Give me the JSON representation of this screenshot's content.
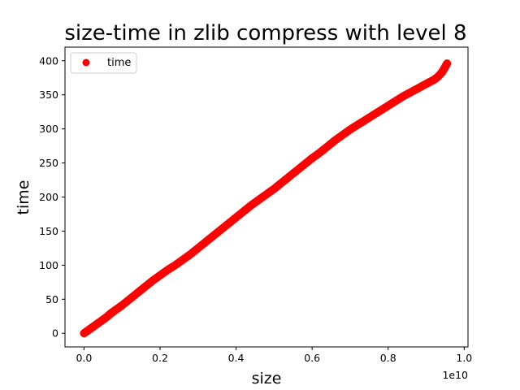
{
  "chart_data": {
    "type": "scatter",
    "title": "size-time in zlib compress with level 8",
    "xlabel": "size",
    "ylabel": "time",
    "x_offset_label": "1e10",
    "x_scale": 10000000000,
    "xlim": [
      -500000000,
      10100000000
    ],
    "ylim": [
      -20,
      420
    ],
    "xticks": [
      0,
      2000000000,
      4000000000,
      6000000000,
      8000000000,
      10000000000
    ],
    "xtick_labels": [
      "0.0",
      "0.2",
      "0.4",
      "0.6",
      "0.8",
      "1.0"
    ],
    "yticks": [
      0,
      50,
      100,
      150,
      200,
      250,
      300,
      350,
      400
    ],
    "ytick_labels": [
      "0",
      "50",
      "100",
      "150",
      "200",
      "250",
      "300",
      "350",
      "400"
    ],
    "grid": false,
    "legend_position": "top-left",
    "series": [
      {
        "name": "time",
        "color": "#ff0000",
        "x": [
          0,
          100000000,
          200000000,
          300000000,
          400000000,
          500000000,
          600000000,
          700000000,
          800000000,
          900000000,
          1000000000,
          1200000000,
          1400000000,
          1600000000,
          1800000000,
          2000000000,
          2200000000,
          2400000000,
          2600000000,
          2800000000,
          3000000000,
          3200000000,
          3400000000,
          3600000000,
          3800000000,
          4000000000,
          4200000000,
          4400000000,
          4600000000,
          4800000000,
          5000000000,
          5200000000,
          5400000000,
          5600000000,
          5800000000,
          6000000000,
          6200000000,
          6400000000,
          6600000000,
          6800000000,
          7000000000,
          7200000000,
          7400000000,
          7600000000,
          7800000000,
          8000000000,
          8200000000,
          8400000000,
          8600000000,
          8800000000,
          9000000000,
          9100000000,
          9200000000,
          9300000000,
          9400000000,
          9450000000,
          9500000000,
          9550000000
        ],
        "y": [
          0,
          4,
          8,
          12,
          16,
          20,
          24,
          29,
          33,
          37,
          41,
          50,
          59,
          68,
          77,
          85,
          93,
          100,
          108,
          116,
          125,
          134,
          143,
          152,
          161,
          170,
          179,
          188,
          196,
          204,
          212,
          221,
          230,
          239,
          248,
          257,
          265,
          274,
          283,
          291,
          299,
          306,
          313,
          320,
          327,
          334,
          341,
          348,
          354,
          360,
          366,
          369,
          372,
          376,
          382,
          386,
          391,
          396
        ]
      }
    ]
  }
}
